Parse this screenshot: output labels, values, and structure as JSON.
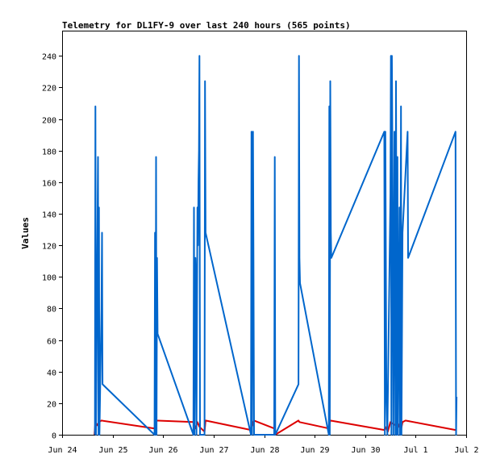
{
  "chart_data": {
    "type": "line",
    "title": "Telemetry for DL1FY-9 over last 240 hours (565 points)",
    "xlabel": "",
    "ylabel": "Values",
    "x_unit": "days since Jun 24 00:00",
    "x_ticks": [
      {
        "value": 0,
        "label": "Jun 24"
      },
      {
        "value": 1,
        "label": "Jun 25"
      },
      {
        "value": 2,
        "label": "Jun 26"
      },
      {
        "value": 3,
        "label": "Jun 27"
      },
      {
        "value": 4,
        "label": "Jun 28"
      },
      {
        "value": 5,
        "label": "Jun 29"
      },
      {
        "value": 6,
        "label": "Jun 30"
      },
      {
        "value": 7,
        "label": "Jul 1"
      },
      {
        "value": 8,
        "label": "Jul 2"
      }
    ],
    "xlim": [
      0,
      8
    ],
    "ylim": [
      0,
      256
    ],
    "y_ticks": [
      0,
      20,
      40,
      60,
      80,
      100,
      120,
      140,
      160,
      180,
      200,
      220,
      240
    ],
    "grid": false,
    "series": [
      {
        "name": "",
        "color": "#0066cc",
        "points": [
          [
            0.65,
            0
          ],
          [
            0.66,
            208
          ],
          [
            0.67,
            0
          ],
          [
            0.71,
            176
          ],
          [
            0.72,
            0
          ],
          [
            0.73,
            144
          ],
          [
            0.74,
            0
          ],
          [
            0.78,
            80
          ],
          [
            0.79,
            128
          ],
          [
            0.8,
            32
          ],
          [
            1.83,
            0
          ],
          [
            1.84,
            128
          ],
          [
            1.85,
            0
          ],
          [
            1.86,
            176
          ],
          [
            1.87,
            0
          ],
          [
            1.88,
            112
          ],
          [
            1.89,
            64
          ],
          [
            2.6,
            0
          ],
          [
            2.61,
            144
          ],
          [
            2.62,
            0
          ],
          [
            2.64,
            112
          ],
          [
            2.65,
            96
          ],
          [
            2.66,
            0
          ],
          [
            2.68,
            144
          ],
          [
            2.69,
            120
          ],
          [
            2.7,
            160
          ],
          [
            2.71,
            180
          ],
          [
            2.72,
            240
          ],
          [
            2.73,
            0
          ],
          [
            2.82,
            0
          ],
          [
            2.83,
            224
          ],
          [
            2.84,
            128
          ],
          [
            3.74,
            0
          ],
          [
            3.75,
            192
          ],
          [
            3.76,
            0
          ],
          [
            3.78,
            192
          ],
          [
            3.79,
            112
          ],
          [
            3.8,
            0
          ],
          [
            4.2,
            0
          ],
          [
            4.21,
            176
          ],
          [
            4.22,
            0
          ],
          [
            4.68,
            32
          ],
          [
            4.69,
            240
          ],
          [
            4.7,
            112
          ],
          [
            4.71,
            96
          ],
          [
            5.28,
            0
          ],
          [
            5.29,
            208
          ],
          [
            5.3,
            0
          ],
          [
            5.31,
            224
          ],
          [
            5.32,
            128
          ],
          [
            5.33,
            112
          ],
          [
            6.38,
            192
          ],
          [
            6.39,
            0
          ],
          [
            6.4,
            192
          ],
          [
            6.42,
            24
          ],
          [
            6.44,
            0
          ],
          [
            6.5,
            152
          ],
          [
            6.51,
            240
          ],
          [
            6.52,
            0
          ],
          [
            6.53,
            240
          ],
          [
            6.54,
            176
          ],
          [
            6.56,
            0
          ],
          [
            6.58,
            192
          ],
          [
            6.6,
            0
          ],
          [
            6.61,
            224
          ],
          [
            6.63,
            0
          ],
          [
            6.64,
            176
          ],
          [
            6.65,
            0
          ],
          [
            6.68,
            144
          ],
          [
            6.69,
            0
          ],
          [
            6.71,
            208
          ],
          [
            6.72,
            0
          ],
          [
            6.74,
            128
          ],
          [
            6.84,
            192
          ],
          [
            6.85,
            112
          ],
          [
            7.79,
            192
          ],
          [
            7.8,
            0
          ],
          [
            7.81,
            24
          ]
        ]
      },
      {
        "name": "",
        "color": "#dd0000",
        "points": [
          [
            0.64,
            0
          ],
          [
            0.66,
            8
          ],
          [
            0.7,
            6
          ],
          [
            0.73,
            8
          ],
          [
            0.78,
            9
          ],
          [
            1.83,
            4
          ],
          [
            1.85,
            9
          ],
          [
            2.6,
            8
          ],
          [
            2.64,
            4
          ],
          [
            2.68,
            8
          ],
          [
            2.72,
            5
          ],
          [
            2.82,
            2
          ],
          [
            2.84,
            9
          ],
          [
            3.74,
            3
          ],
          [
            3.78,
            7
          ],
          [
            3.8,
            9
          ],
          [
            4.2,
            4
          ],
          [
            4.22,
            0
          ],
          [
            4.68,
            9
          ],
          [
            4.7,
            8
          ],
          [
            5.28,
            4
          ],
          [
            5.31,
            9
          ],
          [
            6.38,
            3
          ],
          [
            6.4,
            5
          ],
          [
            6.45,
            2
          ],
          [
            6.5,
            8
          ],
          [
            6.6,
            6
          ],
          [
            6.64,
            8
          ],
          [
            6.71,
            3
          ],
          [
            6.74,
            8
          ],
          [
            6.8,
            9
          ],
          [
            7.79,
            3
          ]
        ]
      }
    ]
  }
}
